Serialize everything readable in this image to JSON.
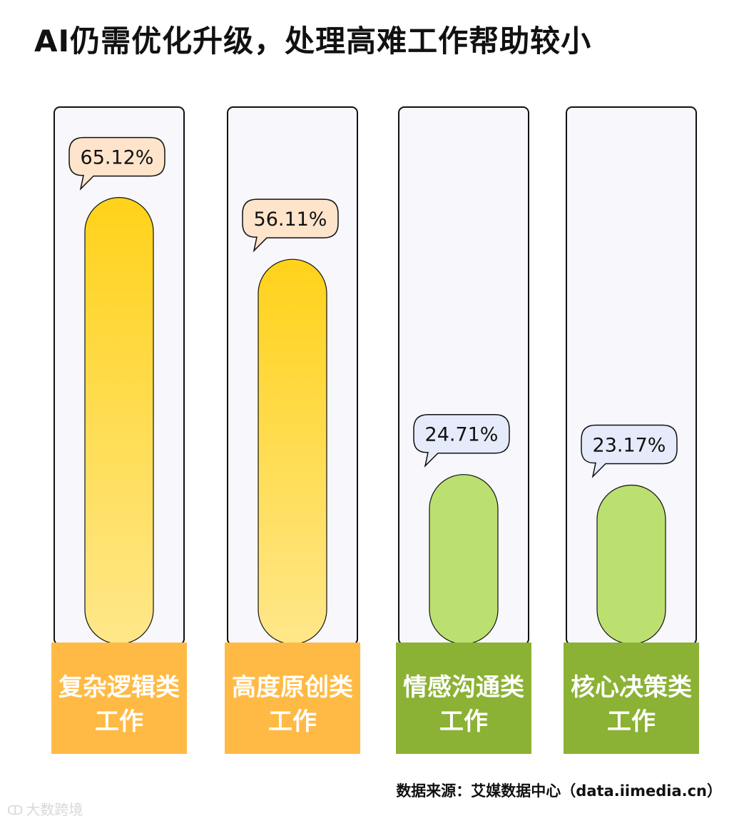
{
  "title": "AI仍需优化升级，处理高难工作帮助较小",
  "source": "数据来源：艾媒数据中心（data.iimedia.cn）",
  "watermark": {
    "text": "大数跨境",
    "icon": "logo-icon"
  },
  "chart_data": {
    "type": "bar",
    "unit": "%",
    "ylim": [
      0,
      100
    ],
    "grid": false,
    "categories": [
      "复杂逻辑类\n工作",
      "高度原创类\n工作",
      "情感沟通类\n工作",
      "核心决策类\n工作"
    ],
    "values": [
      65.12,
      56.11,
      24.71,
      23.17
    ],
    "value_labels": [
      "65.12%",
      "56.11%",
      "24.71%",
      "23.17%"
    ],
    "groups": [
      "high",
      "high",
      "low",
      "low"
    ],
    "colors": {
      "high_bar_top": "#FFD21A",
      "high_bar_bottom": "#FFE78A",
      "high_label_bg": "#FFBA45",
      "high_bubble": "#FDE4CB",
      "low_bar": "#BBE070",
      "low_label_bg": "#8BB135",
      "low_bubble": "#E6EBFB",
      "track_bg": "#F7F7FC",
      "outline": "#111111",
      "label_text": "#FFFFFF"
    }
  }
}
